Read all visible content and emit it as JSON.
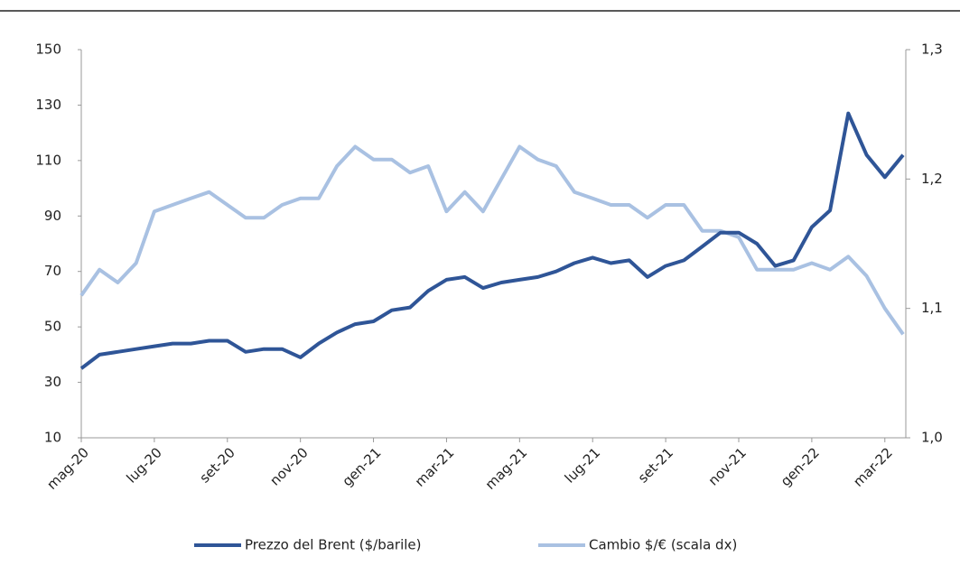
{
  "chart_data": {
    "type": "line",
    "categories": [
      "mag-20",
      null,
      null,
      null,
      "lug-20",
      null,
      null,
      null,
      "set-20",
      null,
      null,
      null,
      "nov-20",
      null,
      null,
      null,
      "gen-21",
      null,
      null,
      null,
      "mar-21",
      null,
      null,
      null,
      "mag-21",
      null,
      null,
      null,
      "lug-21",
      null,
      null,
      null,
      "set-21",
      null,
      null,
      null,
      "nov-21",
      null,
      null,
      null,
      "gen-22",
      null,
      null,
      null,
      "mar-22",
      null
    ],
    "series": [
      {
        "name": "Prezzo del Brent ($/barile)",
        "color": "#2f5597",
        "values": [
          35,
          40,
          41,
          42,
          43,
          44,
          44,
          45,
          45,
          41,
          42,
          42,
          39,
          44,
          48,
          51,
          52,
          56,
          57,
          63,
          67,
          68,
          64,
          66,
          67,
          68,
          70,
          73,
          75,
          73,
          74,
          68,
          72,
          74,
          79,
          84,
          84,
          80,
          72,
          74,
          86,
          92,
          127,
          112,
          104,
          112
        ]
      },
      {
        "name": "Cambio $/€ (scala dx)",
        "color": "#a9c1e2",
        "axis": "y2",
        "values": [
          1.11,
          1.13,
          1.12,
          1.135,
          1.175,
          1.18,
          1.185,
          1.19,
          1.18,
          1.17,
          1.17,
          1.18,
          1.185,
          1.185,
          1.21,
          1.225,
          1.215,
          1.215,
          1.205,
          1.21,
          1.175,
          1.19,
          1.175,
          1.2,
          1.225,
          1.215,
          1.21,
          1.19,
          1.185,
          1.18,
          1.18,
          1.17,
          1.18,
          1.18,
          1.16,
          1.16,
          1.155,
          1.13,
          1.13,
          1.13,
          1.135,
          1.13,
          1.14,
          1.125,
          1.1,
          1.08
        ]
      }
    ],
    "ylim": [
      10,
      150
    ],
    "yticks": [
      10,
      30,
      50,
      70,
      90,
      110,
      130,
      150
    ],
    "y2lim": [
      1.0,
      1.3
    ],
    "y2ticks": [
      {
        "value": 1.0,
        "label": "1,0"
      },
      {
        "value": 1.1,
        "label": "1,1"
      },
      {
        "value": 1.2,
        "label": "1,2"
      },
      {
        "value": 1.3,
        "label": "1,3"
      }
    ],
    "legend": "bottom"
  }
}
